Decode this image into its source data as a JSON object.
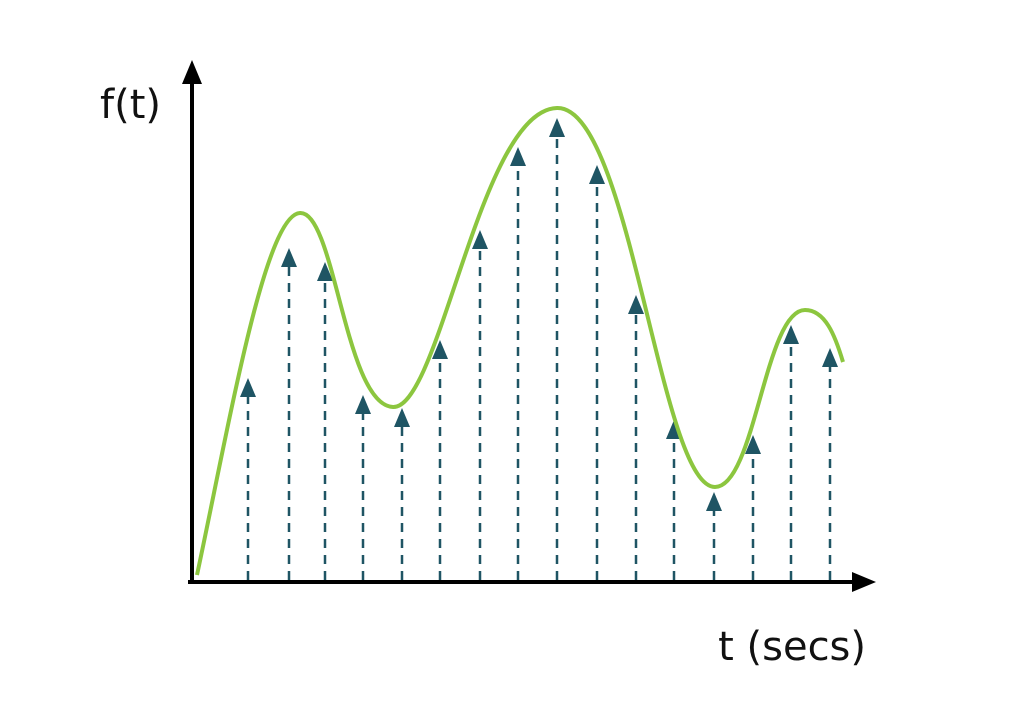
{
  "axes": {
    "y_label": "f(t)",
    "x_label": "t (secs)"
  }
}
